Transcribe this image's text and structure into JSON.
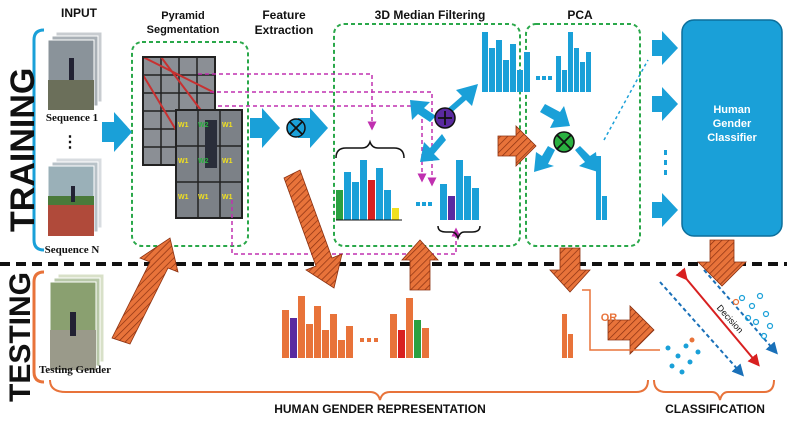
{
  "header": {
    "input": "INPUT",
    "pyramid_line1": "Pyramid",
    "pyramid_line2": "Segmentation",
    "feature_line1": "Feature",
    "feature_line2": "Extraction",
    "median": "3D Median Filtering",
    "pca": "PCA"
  },
  "side": {
    "training": "TRAINING",
    "testing": "TESTING"
  },
  "inputs": {
    "sequence_1": "Sequence 1",
    "sequence_n": "Sequence N",
    "dots": "⋮",
    "testing_gender": "Testing Gender"
  },
  "grid_weights": [
    "W1",
    "W2",
    "W1",
    "W1",
    "W2",
    "W1",
    "W1",
    "W1",
    "W1"
  ],
  "classifier": {
    "line1": "Human",
    "line2": "Gender",
    "line3": "Classifier"
  },
  "misc": {
    "or": "OR",
    "decision": "Decision",
    "ellipsis": "...",
    "plus": "+",
    "times": "×"
  },
  "footer": {
    "representation": "HUMAN GENDER REPRESENTATION",
    "classification": "CLASSIFICATION"
  },
  "colors": {
    "blue": "#1aa0d8",
    "orange": "#e8733a",
    "green_dash": "#2aa84a",
    "magenta": "#c030b0",
    "purple": "#5a2aa0",
    "red": "#d82020",
    "yellow": "#f0e020"
  }
}
